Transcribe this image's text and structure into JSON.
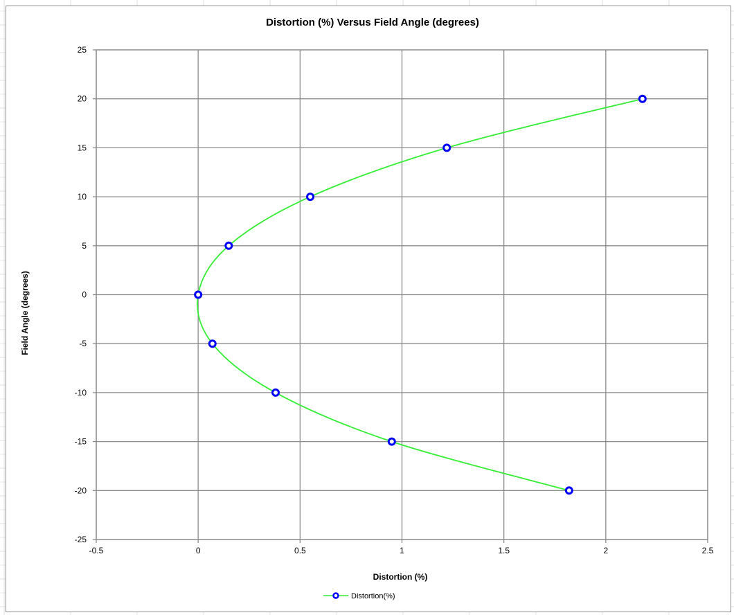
{
  "chart_data": {
    "type": "scatter",
    "title": "Distortion (%) Versus Field Angle (degrees)",
    "xlabel": "Distortion (%)",
    "ylabel": "Field Angle (degrees)",
    "xlim": [
      -0.5,
      2.5
    ],
    "ylim": [
      -25,
      25
    ],
    "x_ticks": [
      -0.5,
      0,
      0.5,
      1,
      1.5,
      2,
      2.5
    ],
    "x_tick_labels": [
      "-0.5",
      "0",
      "0.5",
      "1",
      "1.5",
      "2",
      "2.5"
    ],
    "y_ticks": [
      -25,
      -20,
      -15,
      -10,
      -5,
      0,
      5,
      10,
      15,
      20,
      25
    ],
    "y_tick_labels": [
      "-25",
      "-20",
      "-15",
      "-10",
      "-5",
      "0",
      "5",
      "10",
      "15",
      "20",
      "25"
    ],
    "grid": true,
    "legend_position": "bottom",
    "series": [
      {
        "name": "Distortion(%)",
        "line_color": "#33ee33",
        "marker_color": "#0000ff",
        "smooth": true,
        "x": [
          1.82,
          0.95,
          0.38,
          0.07,
          0.0,
          0.15,
          0.55,
          1.22,
          2.18
        ],
        "y": [
          -20,
          -15,
          -10,
          -5,
          0,
          5,
          10,
          15,
          20
        ]
      }
    ]
  }
}
